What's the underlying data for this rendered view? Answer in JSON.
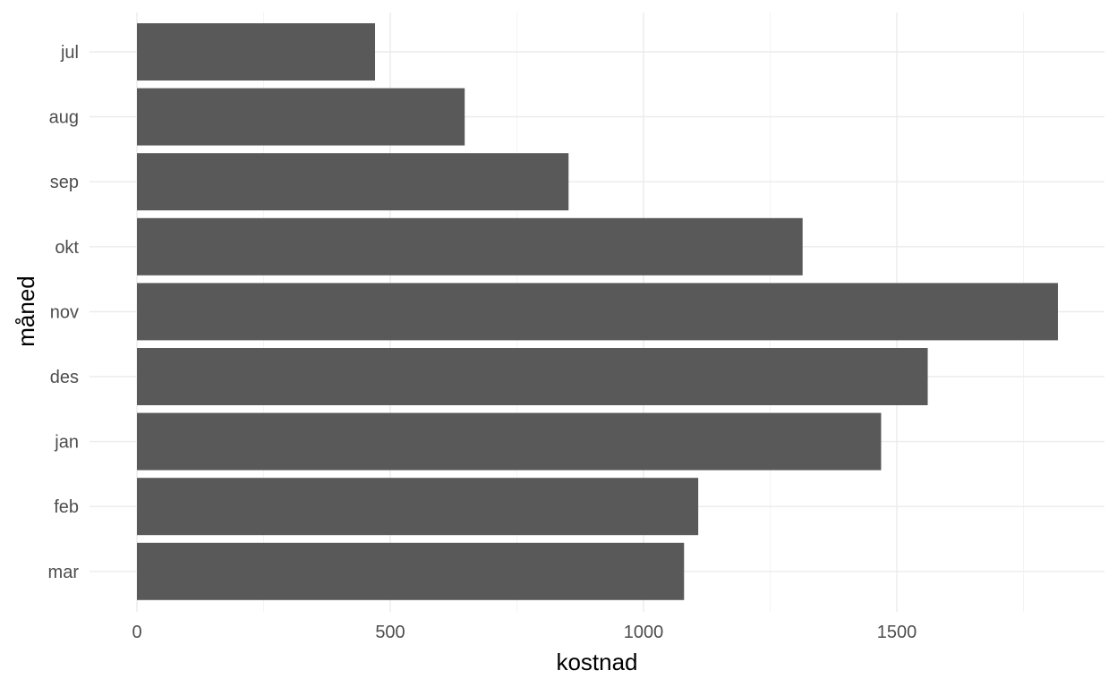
{
  "chart_data": {
    "type": "bar",
    "orientation": "horizontal",
    "categories": [
      "jul",
      "aug",
      "sep",
      "okt",
      "nov",
      "des",
      "jan",
      "feb",
      "mar"
    ],
    "values": [
      470,
      647,
      852,
      1314,
      1818,
      1561,
      1469,
      1108,
      1080
    ],
    "xlabel": "kostnad",
    "ylabel": "måned",
    "xlim": [
      0,
      1900
    ],
    "xticks": [
      0,
      500,
      1000,
      1500
    ],
    "grid": true,
    "legend": "none",
    "bar_color": "#595959",
    "grid_color": "#ebebeb"
  }
}
